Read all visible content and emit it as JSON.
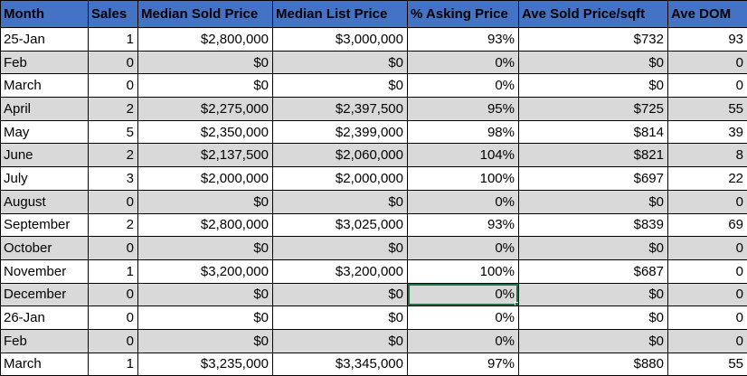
{
  "colors": {
    "header_bg": "#4472C4",
    "header_text": "#000000",
    "row_bg": "#FFFFFF",
    "row_alt_bg": "#D9D9D9",
    "grid": "#000000",
    "selection_border": "#217346"
  },
  "table": {
    "columns": [
      {
        "key": "month",
        "label": "Month",
        "align": "left"
      },
      {
        "key": "sales",
        "label": "Sales",
        "align": "right"
      },
      {
        "key": "median-sold-price",
        "label": "Median Sold Price",
        "align": "right"
      },
      {
        "key": "median-list-price",
        "label": "Median List Price",
        "align": "right"
      },
      {
        "key": "pct-asking-price",
        "label": "% Asking Price",
        "align": "right"
      },
      {
        "key": "ave-sold-price-sqft",
        "label": "Ave Sold Price/sqft",
        "align": "right"
      },
      {
        "key": "ave-dom",
        "label": "Ave DOM",
        "align": "right"
      }
    ],
    "rows": [
      [
        "25-Jan",
        "1",
        "$2,800,000",
        "$3,000,000",
        "93%",
        "$732",
        "93"
      ],
      [
        "Feb",
        "0",
        "$0",
        "$0",
        "0%",
        "$0",
        "0"
      ],
      [
        "March",
        "0",
        "$0",
        "$0",
        "0%",
        "$0",
        "0"
      ],
      [
        "April",
        "2",
        "$2,275,000",
        "$2,397,500",
        "95%",
        "$725",
        "55"
      ],
      [
        "May",
        "5",
        "$2,350,000",
        "$2,399,000",
        "98%",
        "$814",
        "39"
      ],
      [
        "June",
        "2",
        "$2,137,500",
        "$2,060,000",
        "104%",
        "$821",
        "8"
      ],
      [
        "July",
        "3",
        "$2,000,000",
        "$2,000,000",
        "100%",
        "$697",
        "22"
      ],
      [
        "August",
        "0",
        "$0",
        "$0",
        "0%",
        "$0",
        "0"
      ],
      [
        "September",
        "2",
        "$2,800,000",
        "$3,025,000",
        "93%",
        "$839",
        "69"
      ],
      [
        "October",
        "0",
        "$0",
        "$0",
        "0%",
        "$0",
        "0"
      ],
      [
        "November",
        "1",
        "$3,200,000",
        "$3,200,000",
        "100%",
        "$687",
        "0"
      ],
      [
        "December",
        "0",
        "$0",
        "$0",
        "0%",
        "$0",
        "0"
      ],
      [
        "26-Jan",
        "0",
        "$0",
        "$0",
        "0%",
        "$0",
        "0"
      ],
      [
        "Feb",
        "0",
        "$0",
        "$0",
        "0%",
        "$0",
        "0"
      ],
      [
        "March",
        "1",
        "$3,235,000",
        "$3,345,000",
        "97%",
        "$880",
        "55"
      ]
    ],
    "selection": {
      "row_index": 11,
      "col_index": 4,
      "selected_value": "0%"
    }
  }
}
